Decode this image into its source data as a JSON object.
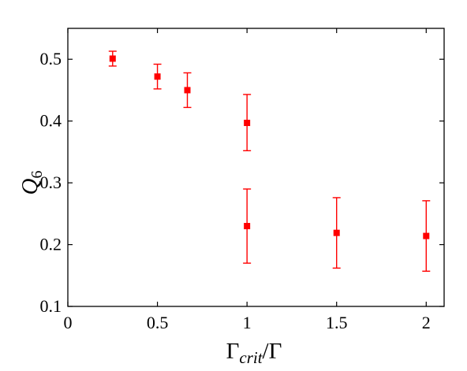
{
  "chart_data": {
    "type": "scatter",
    "xlabel": "Γcrit/Γ",
    "xlabel_parts": {
      "base": "Γ",
      "sub": "crit",
      "tail": "/Γ"
    },
    "ylabel": "Q6",
    "ylabel_parts": {
      "base": "Q",
      "sub": "6"
    },
    "xlim": [
      0,
      2.1
    ],
    "ylim": [
      0.1,
      0.55
    ],
    "xticks": [
      0,
      0.5,
      1,
      1.5,
      2
    ],
    "xtick_labels": [
      "0",
      "0.5",
      "1",
      "1.5",
      "2"
    ],
    "yticks": [
      0.1,
      0.2,
      0.3,
      0.4,
      0.5
    ],
    "ytick_labels": [
      "0.1",
      "0.2",
      "0.3",
      "0.4",
      "0.5"
    ],
    "grid": false,
    "box": true,
    "series": [
      {
        "color": "#ff0000",
        "marker": "square",
        "points": [
          {
            "x": 0.25,
            "y": 0.501,
            "ylow": 0.489,
            "yhigh": 0.513
          },
          {
            "x": 0.5,
            "y": 0.472,
            "ylow": 0.452,
            "yhigh": 0.492
          },
          {
            "x": 0.667,
            "y": 0.45,
            "ylow": 0.422,
            "yhigh": 0.478
          },
          {
            "x": 1.0,
            "y": 0.397,
            "ylow": 0.352,
            "yhigh": 0.443
          },
          {
            "x": 1.0,
            "y": 0.23,
            "ylow": 0.17,
            "yhigh": 0.29
          },
          {
            "x": 1.5,
            "y": 0.219,
            "ylow": 0.162,
            "yhigh": 0.276
          },
          {
            "x": 2.0,
            "y": 0.214,
            "ylow": 0.157,
            "yhigh": 0.271
          }
        ]
      }
    ]
  }
}
